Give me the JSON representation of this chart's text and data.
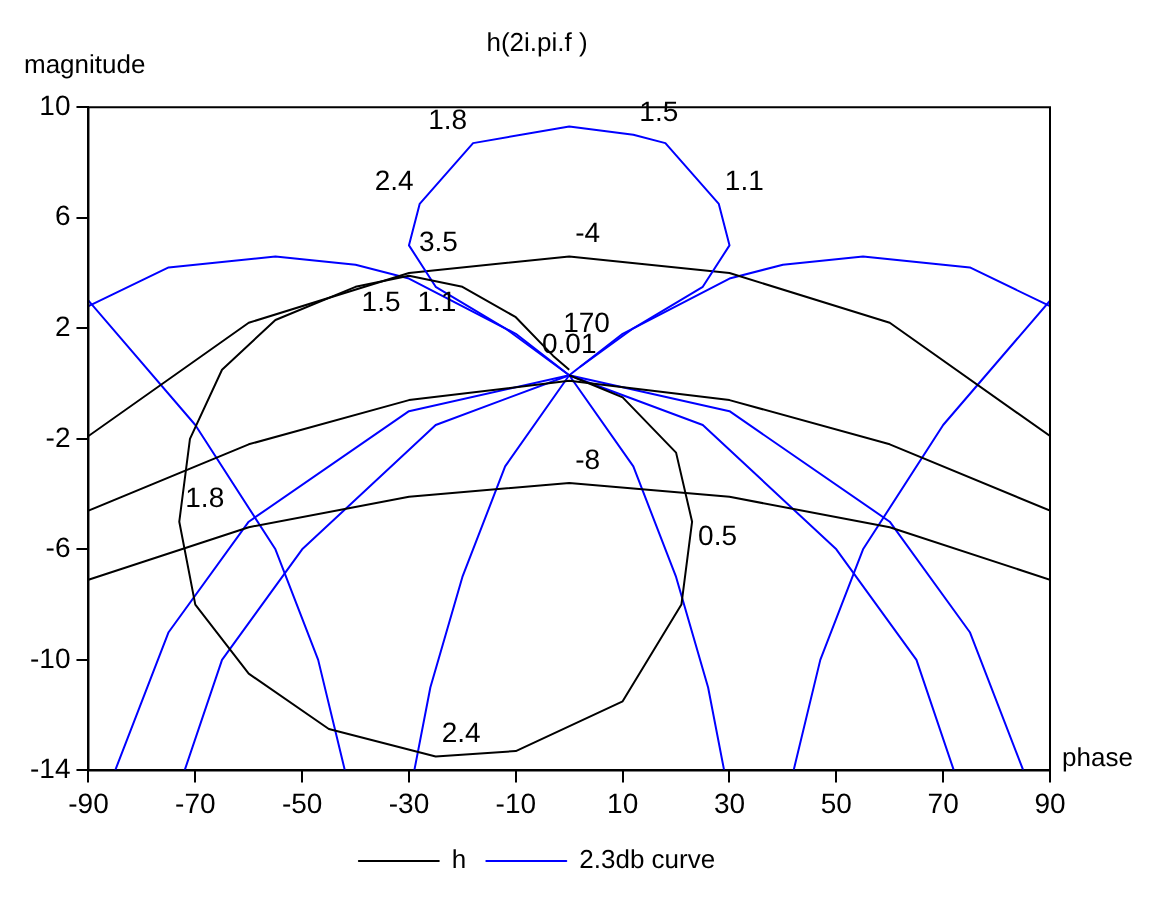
{
  "chart_data": {
    "type": "line",
    "title": "h(2i.pi.f )",
    "xlabel": "phase",
    "ylabel": "magnitude",
    "xlim": [
      -90,
      90
    ],
    "ylim": [
      -14,
      10
    ],
    "xticks": [
      -90,
      -70,
      -50,
      -30,
      -10,
      10,
      30,
      50,
      70,
      90
    ],
    "yticks": [
      -14,
      -10,
      -6,
      -2,
      2,
      6,
      10
    ],
    "grid": false,
    "legend": "bottom",
    "marker": "none",
    "line_style": "solid",
    "series": [
      {
        "name": "h",
        "color": "#000000",
        "x": [
          0,
          10,
          20,
          23,
          21,
          10,
          -10,
          -25,
          -45,
          -60,
          -70,
          -73,
          -71,
          -65,
          -55,
          -40,
          -30,
          -20,
          -10,
          -3,
          0
        ],
        "values": [
          0.3,
          -0.5,
          -2.5,
          -5,
          -8,
          -11.5,
          -13.3,
          -13.5,
          -12.5,
          -10.5,
          -8,
          -5,
          -2,
          0.5,
          2.3,
          3.5,
          3.9,
          3.5,
          2.4,
          1,
          0.5
        ]
      },
      {
        "name": "2.3db curve",
        "color": "#0000ff",
        "x": [
          0,
          -12,
          -25,
          -30,
          -28,
          -18,
          0,
          12,
          18,
          28,
          30,
          25,
          12,
          2
        ],
        "values": [
          0.3,
          2,
          3.5,
          5,
          6.5,
          8.7,
          9.3,
          9,
          8.7,
          6.5,
          5,
          3.5,
          2,
          0.6
        ]
      },
      {
        "color": "#000000",
        "x": [
          -90,
          -60,
          -30,
          0,
          30,
          60,
          90
        ],
        "values": [
          -1.9,
          2.2,
          4,
          4.6,
          4,
          2.2,
          -1.9
        ]
      },
      {
        "color": "#000000",
        "x": [
          -90,
          -60,
          -30,
          0,
          30,
          60,
          90
        ],
        "values": [
          -4.6,
          -2.2,
          -0.6,
          0.1,
          -0.6,
          -2.2,
          -4.6
        ]
      },
      {
        "color": "#000000",
        "x": [
          -90,
          -60,
          -30,
          0,
          30,
          60,
          90
        ],
        "values": [
          -7.1,
          -5.2,
          -4.1,
          -3.6,
          -4.1,
          -5.2,
          -7.1
        ]
      },
      {
        "color": "#0000ff",
        "x": [
          -90,
          -75,
          -55,
          -40,
          -30,
          -10,
          0,
          30,
          60,
          75,
          85
        ],
        "values": [
          2.8,
          4.2,
          4.6,
          4.3,
          3.8,
          1.8,
          0.3,
          -1,
          -5,
          -9,
          -14
        ]
      },
      {
        "color": "#0000ff",
        "x": [
          90,
          75,
          55,
          40,
          30,
          10,
          0,
          -30,
          -60,
          -75,
          -85
        ],
        "values": [
          2.8,
          4.2,
          4.6,
          4.3,
          3.8,
          1.8,
          0.3,
          -1,
          -5,
          -9,
          -14
        ]
      },
      {
        "color": "#0000ff",
        "x": [
          -72,
          -65,
          -50,
          -25,
          0,
          25,
          50,
          65,
          72
        ],
        "values": [
          -14,
          -10,
          -6,
          -1.5,
          0.3,
          -1.5,
          -6,
          -10,
          -14
        ]
      },
      {
        "color": "#0000ff",
        "x": [
          -90,
          -70,
          -55,
          -47,
          -42
        ],
        "values": [
          3,
          -1.5,
          -6,
          -10,
          -14
        ]
      },
      {
        "color": "#0000ff",
        "x": [
          90,
          70,
          55,
          47,
          42
        ],
        "values": [
          3,
          -1.5,
          -6,
          -10,
          -14
        ]
      },
      {
        "color": "#0000ff",
        "x": [
          -29,
          -26,
          -20,
          -12,
          0,
          12,
          20,
          26,
          29
        ],
        "values": [
          -14,
          -11,
          -7,
          -3,
          0.3,
          -3,
          -7,
          -11,
          -14
        ]
      }
    ],
    "annotations": [
      {
        "text": "1.8",
        "x": -18,
        "y": 8.7
      },
      {
        "text": "1.5",
        "x": 12,
        "y": 9
      },
      {
        "text": "1.1",
        "x": 28,
        "y": 6.5
      },
      {
        "text": "2.4",
        "x": -28,
        "y": 6.5
      },
      {
        "text": "-4",
        "x": 0,
        "y": 4.6
      },
      {
        "text": "1.5",
        "x": -40,
        "y": 3.5
      },
      {
        "text": "3.5",
        "x": -30,
        "y": 3.9
      },
      {
        "text": "1.1",
        "x": -20,
        "y": 3.5
      },
      {
        "text": "1.8",
        "x": -73,
        "y": -5
      },
      {
        "text": "170",
        "x": -3,
        "y": 1
      },
      {
        "text": "0.01",
        "x": 0,
        "y": 0.3
      },
      {
        "text": "-8",
        "x": 0,
        "y": -3.6
      },
      {
        "text": "0.5",
        "x": 23,
        "y": -5
      },
      {
        "text": "2.4",
        "x": -25,
        "y": -13.5
      }
    ]
  }
}
